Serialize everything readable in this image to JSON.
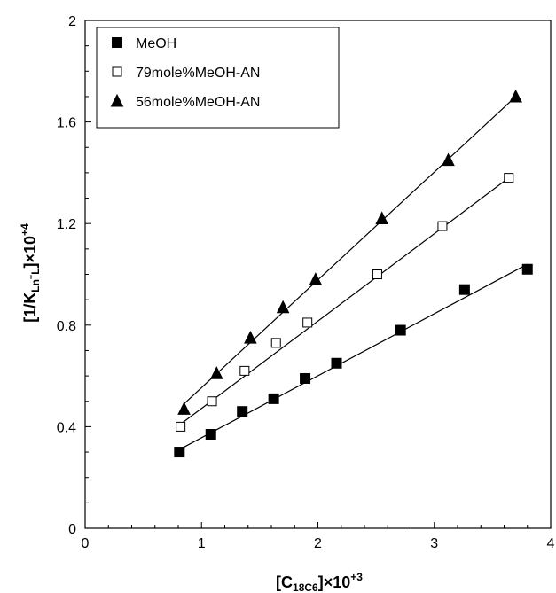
{
  "chart_data": {
    "type": "scatter",
    "xlim": [
      0,
      4
    ],
    "ylim": [
      0,
      2
    ],
    "x_ticks": [
      "0",
      "1",
      "2",
      "3",
      "4"
    ],
    "y_ticks": [
      "0",
      "0.4",
      "0.8",
      "1.2",
      "1.6",
      "2"
    ],
    "xlabel": {
      "base": "[C",
      "sub": "18C6",
      "mid": "]×10",
      "sup": "+3"
    },
    "ylabel": {
      "base": "[1/K",
      "sub": "Ln",
      "subsup": "+",
      "sub2": "L",
      "mid": "]×10",
      "sup": "+4"
    },
    "legend_position": "top-left",
    "grid": false,
    "series": [
      {
        "name": "MeOH",
        "marker": "filled-square",
        "x": [
          0.81,
          1.08,
          1.35,
          1.62,
          1.89,
          2.16,
          2.71,
          3.26,
          3.8
        ],
        "y": [
          0.3,
          0.37,
          0.46,
          0.51,
          0.59,
          0.65,
          0.78,
          0.94,
          1.02
        ],
        "fit": {
          "x": [
            0.81,
            3.8
          ],
          "y": [
            0.31,
            1.04
          ]
        }
      },
      {
        "name": "79mole%MeOH-AN",
        "marker": "open-square",
        "x": [
          0.82,
          1.09,
          1.37,
          1.64,
          1.91,
          2.51,
          3.07,
          3.64
        ],
        "y": [
          0.4,
          0.5,
          0.62,
          0.73,
          0.81,
          1.0,
          1.19,
          1.38
        ],
        "fit": {
          "x": [
            0.82,
            3.64
          ],
          "y": [
            0.41,
            1.38
          ]
        }
      },
      {
        "name": "56mole%MeOH-AN",
        "marker": "filled-triangle",
        "x": [
          0.85,
          1.13,
          1.42,
          1.7,
          1.98,
          2.55,
          3.12,
          3.7
        ],
        "y": [
          0.47,
          0.61,
          0.75,
          0.87,
          0.98,
          1.22,
          1.45,
          1.7
        ],
        "fit": {
          "x": [
            0.85,
            3.7
          ],
          "y": [
            0.49,
            1.7
          ]
        }
      }
    ]
  }
}
